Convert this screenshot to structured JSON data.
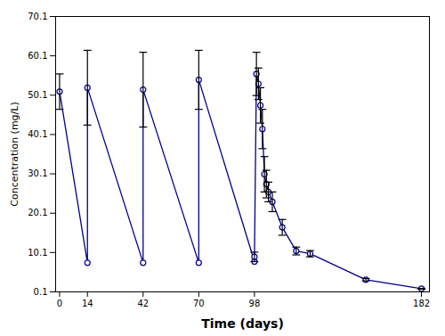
{
  "chart_data": {
    "type": "line",
    "xlabel": "Time (days)",
    "ylabel": "Concentration (mg/L)",
    "color": "#00008B",
    "marker": "circle",
    "x": [
      0,
      14,
      14,
      42,
      42,
      70,
      70,
      98,
      98,
      99,
      100,
      101,
      102,
      103,
      104,
      105,
      107,
      112,
      119,
      126,
      154,
      182
    ],
    "values": [
      51.0,
      7.5,
      52.0,
      7.5,
      51.5,
      7.5,
      54.0,
      7.8,
      9.0,
      55.5,
      53.0,
      47.5,
      41.5,
      30.0,
      27.5,
      25.5,
      23.0,
      16.5,
      10.5,
      9.8,
      3.2,
      0.9
    ],
    "error_bars": {
      "color": "black",
      "x": [
        0,
        14,
        42,
        70,
        98,
        99,
        100,
        101,
        102,
        103,
        104,
        105,
        107,
        112,
        119,
        126,
        154,
        182
      ],
      "values": [
        51.0,
        52.0,
        51.5,
        54.0,
        9.0,
        55.5,
        53.0,
        47.5,
        41.5,
        30.0,
        27.5,
        25.5,
        23.0,
        16.5,
        10.5,
        9.8,
        3.2,
        0.9
      ],
      "yerr": [
        4.5,
        9.5,
        9.5,
        7.5,
        1.2,
        5.5,
        4.0,
        4.5,
        5.0,
        4.5,
        3.5,
        2.5,
        2.5,
        2.0,
        1.0,
        0.8,
        0.3,
        0.1
      ]
    },
    "xlim": [
      -2,
      186
    ],
    "ylim": [
      0.1,
      70.1
    ],
    "xticks": [
      0,
      14,
      42,
      70,
      98,
      182
    ],
    "yticks": [
      0.1,
      10.1,
      20.1,
      30.1,
      40.1,
      50.1,
      60.1,
      70.1
    ],
    "grid": false
  }
}
